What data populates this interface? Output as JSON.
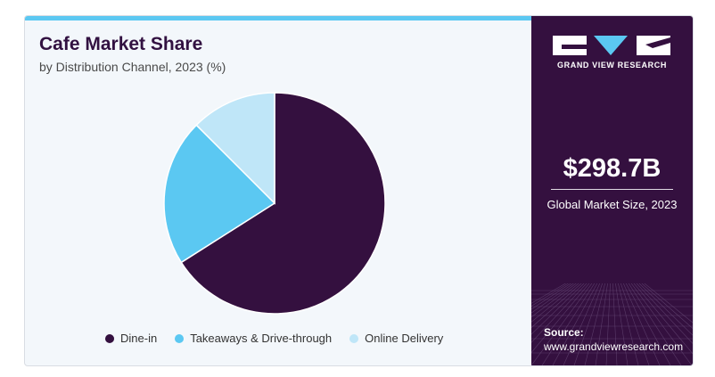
{
  "chart_data": {
    "type": "pie",
    "title": "Cafe Market Share",
    "subtitle": "by Distribution Channel, 2023 (%)",
    "categories": [
      "Dine-in",
      "Takeaways & Drive-through",
      "Online Delivery"
    ],
    "values": [
      66,
      21.5,
      12.5
    ],
    "colors": [
      "#34103f",
      "#5bc8f2",
      "#bfe6f8"
    ],
    "legend_position": "bottom"
  },
  "sidebar": {
    "logo_text": "GRAND VIEW RESEARCH",
    "market_value": "$298.7B",
    "market_label": "Global Market Size, 2023",
    "source_label": "Source:",
    "source_url": "www.grandviewresearch.com"
  }
}
